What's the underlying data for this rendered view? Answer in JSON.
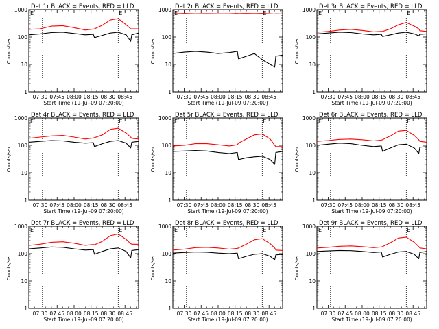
{
  "figure": {
    "background": "#ffffff",
    "events_color": "#000000",
    "lld_color": "#ff0000",
    "x_axis_label": "Start Time (19-Jul-09 07:20:00)",
    "y_axis_label": "Counts/sec",
    "x_tick_labels": [
      "07:30",
      "07:45",
      "08:00",
      "08:15",
      "08:30",
      "08:45"
    ],
    "y_tick_labels": [
      "1",
      "10",
      "100",
      "1000"
    ],
    "marker_left": "E",
    "marker_right": "E"
  },
  "chart_data": [
    {
      "type": "line",
      "title": "Det 1r BLACK = Events, RED = LLD",
      "xlabel": "Start Time (19-Jul-09 07:20:00)",
      "ylabel": "Counts/sec",
      "x_unit": "time",
      "xlim": [
        "07:20",
        "08:57"
      ],
      "ylim": [
        1,
        1000
      ],
      "y_scale": "log",
      "x_ticks": [
        "07:30",
        "07:45",
        "08:00",
        "08:15",
        "08:30",
        "08:45"
      ],
      "event_lines": [
        "07:32",
        "08:39"
      ],
      "x": [
        "07:20",
        "07:30",
        "07:40",
        "07:50",
        "08:00",
        "08:10",
        "08:17",
        "08:18",
        "08:25",
        "08:32",
        "08:39",
        "08:46",
        "08:50",
        "08:51",
        "08:57"
      ],
      "series": [
        {
          "name": "Events",
          "color": "#000000",
          "values": [
            120,
            130,
            145,
            150,
            135,
            120,
            125,
            95,
            115,
            140,
            150,
            120,
            70,
            120,
            140
          ]
        },
        {
          "name": "LLD",
          "color": "#ff0000",
          "values": [
            190,
            200,
            250,
            260,
            220,
            180,
            195,
            200,
            270,
            420,
            470,
            280,
            200,
            200,
            200
          ]
        }
      ]
    },
    {
      "type": "line",
      "title": "Det 2r BLACK = Events, RED = LLD",
      "xlabel": "Start Time (19-Jul-09 07:20:00)",
      "ylabel": "Counts/sec",
      "x_unit": "time",
      "xlim": [
        "07:20",
        "08:57"
      ],
      "ylim": [
        1,
        1000
      ],
      "y_scale": "log",
      "x_ticks": [
        "07:30",
        "07:45",
        "08:00",
        "08:15",
        "08:30",
        "08:45"
      ],
      "event_lines": [
        "07:32",
        "08:39"
      ],
      "x": [
        "07:20",
        "07:30",
        "07:40",
        "07:50",
        "08:00",
        "08:10",
        "08:17",
        "08:18",
        "08:25",
        "08:32",
        "08:39",
        "08:46",
        "08:50",
        "08:51",
        "08:57"
      ],
      "series": [
        {
          "name": "Events",
          "color": "#000000",
          "values": [
            25,
            28,
            30,
            28,
            25,
            27,
            30,
            16,
            20,
            25,
            15,
            10,
            8,
            20,
            22
          ]
        },
        {
          "name": "LLD",
          "color": "#ff0000",
          "values": [
            700,
            720,
            700,
            710,
            700,
            700,
            720,
            710,
            720,
            710,
            720,
            700,
            690,
            700,
            690
          ]
        }
      ]
    },
    {
      "type": "line",
      "title": "Det 3r BLACK = Events, RED = LLD",
      "xlabel": "Start Time (19-Jul-09 07:20:00)",
      "ylabel": "Counts/sec",
      "x_unit": "time",
      "xlim": [
        "07:20",
        "08:57"
      ],
      "ylim": [
        1,
        1000
      ],
      "y_scale": "log",
      "x_ticks": [
        "07:30",
        "07:45",
        "08:00",
        "08:15",
        "08:30",
        "08:45"
      ],
      "event_lines": [
        "07:32",
        "08:39"
      ],
      "x": [
        "07:20",
        "07:30",
        "07:40",
        "07:50",
        "08:00",
        "08:10",
        "08:17",
        "08:18",
        "08:25",
        "08:32",
        "08:39",
        "08:46",
        "08:50",
        "08:51",
        "08:57"
      ],
      "series": [
        {
          "name": "Events",
          "color": "#000000",
          "values": [
            130,
            140,
            150,
            145,
            130,
            120,
            125,
            105,
            120,
            140,
            150,
            130,
            110,
            125,
            130
          ]
        },
        {
          "name": "LLD",
          "color": "#ff0000",
          "values": [
            150,
            160,
            180,
            190,
            175,
            155,
            160,
            160,
            200,
            280,
            340,
            250,
            200,
            170,
            160
          ]
        }
      ]
    },
    {
      "type": "line",
      "title": "Det 4r BLACK = Events, RED = LLD",
      "xlabel": "Start Time (19-Jul-09 07:20:00)",
      "ylabel": "Counts/sec",
      "x_unit": "time",
      "xlim": [
        "07:20",
        "08:57"
      ],
      "ylim": [
        1,
        1000
      ],
      "y_scale": "log",
      "x_ticks": [
        "07:30",
        "07:45",
        "08:00",
        "08:15",
        "08:30",
        "08:45"
      ],
      "event_lines": [
        "07:32",
        "08:39"
      ],
      "x": [
        "07:20",
        "07:30",
        "07:40",
        "07:50",
        "08:00",
        "08:10",
        "08:17",
        "08:18",
        "08:25",
        "08:32",
        "08:39",
        "08:46",
        "08:50",
        "08:51",
        "08:57"
      ],
      "series": [
        {
          "name": "Events",
          "color": "#000000",
          "values": [
            130,
            140,
            150,
            145,
            130,
            120,
            125,
            90,
            115,
            140,
            150,
            120,
            80,
            130,
            140
          ]
        },
        {
          "name": "LLD",
          "color": "#ff0000",
          "values": [
            180,
            200,
            220,
            230,
            200,
            170,
            185,
            190,
            240,
            380,
            420,
            280,
            200,
            180,
            170
          ]
        }
      ]
    },
    {
      "type": "line",
      "title": "Det 5r BLACK = Events, RED = LLD",
      "xlabel": "Start Time (19-Jul-09 07:20:00)",
      "ylabel": "Counts/sec",
      "x_unit": "time",
      "xlim": [
        "07:20",
        "08:57"
      ],
      "ylim": [
        1,
        1000
      ],
      "y_scale": "log",
      "x_ticks": [
        "07:30",
        "07:45",
        "08:00",
        "08:15",
        "08:30",
        "08:45"
      ],
      "event_lines": [
        "07:32",
        "08:39"
      ],
      "x": [
        "07:20",
        "07:30",
        "07:40",
        "07:50",
        "08:00",
        "08:10",
        "08:17",
        "08:18",
        "08:25",
        "08:32",
        "08:39",
        "08:46",
        "08:50",
        "08:51",
        "08:57"
      ],
      "series": [
        {
          "name": "Events",
          "color": "#000000",
          "values": [
            60,
            62,
            65,
            62,
            55,
            50,
            55,
            30,
            35,
            38,
            40,
            30,
            20,
            55,
            60
          ]
        },
        {
          "name": "LLD",
          "color": "#ff0000",
          "values": [
            95,
            100,
            115,
            115,
            105,
            95,
            105,
            120,
            170,
            240,
            260,
            170,
            100,
            90,
            90
          ]
        }
      ]
    },
    {
      "type": "line",
      "title": "Det 6r BLACK = Events, RED = LLD",
      "xlabel": "Start Time (19-Jul-09 07:20:00)",
      "ylabel": "Counts/sec",
      "x_unit": "time",
      "xlim": [
        "07:20",
        "08:57"
      ],
      "ylim": [
        1,
        1000
      ],
      "y_scale": "log",
      "x_ticks": [
        "07:30",
        "07:45",
        "08:00",
        "08:15",
        "08:30",
        "08:45"
      ],
      "event_lines": [
        "07:32",
        "08:39"
      ],
      "x": [
        "07:20",
        "07:30",
        "07:40",
        "07:50",
        "08:00",
        "08:10",
        "08:17",
        "08:18",
        "08:25",
        "08:32",
        "08:39",
        "08:46",
        "08:50",
        "08:51",
        "08:57"
      ],
      "series": [
        {
          "name": "Events",
          "color": "#000000",
          "values": [
            100,
            110,
            120,
            115,
            100,
            90,
            95,
            60,
            80,
            105,
            110,
            80,
            50,
            85,
            90
          ]
        },
        {
          "name": "LLD",
          "color": "#ff0000",
          "values": [
            140,
            150,
            165,
            170,
            160,
            145,
            155,
            160,
            220,
            330,
            350,
            230,
            160,
            140,
            130
          ]
        }
      ]
    },
    {
      "type": "line",
      "title": "Det 7r BLACK = Events, RED = LLD",
      "xlabel": "Start Time (19-Jul-09 07:20:00)",
      "ylabel": "Counts/sec",
      "x_unit": "time",
      "xlim": [
        "07:20",
        "08:57"
      ],
      "ylim": [
        1,
        1000
      ],
      "y_scale": "log",
      "x_ticks": [
        "07:30",
        "07:45",
        "08:00",
        "08:15",
        "08:30",
        "08:45"
      ],
      "event_lines": [
        "07:32",
        "08:39"
      ],
      "x": [
        "07:20",
        "07:30",
        "07:40",
        "07:50",
        "08:00",
        "08:10",
        "08:17",
        "08:18",
        "08:25",
        "08:32",
        "08:39",
        "08:46",
        "08:50",
        "08:51",
        "08:57"
      ],
      "series": [
        {
          "name": "Events",
          "color": "#000000",
          "values": [
            150,
            160,
            175,
            170,
            150,
            135,
            140,
            95,
            120,
            150,
            160,
            120,
            70,
            130,
            140
          ]
        },
        {
          "name": "LLD",
          "color": "#ff0000",
          "values": [
            200,
            220,
            260,
            270,
            240,
            200,
            215,
            210,
            280,
            450,
            520,
            330,
            230,
            220,
            220
          ]
        }
      ]
    },
    {
      "type": "line",
      "title": "Det 8r BLACK = Events, RED = LLD",
      "xlabel": "Start Time (19-Jul-09 07:20:00)",
      "ylabel": "Counts/sec",
      "x_unit": "time",
      "xlim": [
        "07:20",
        "08:57"
      ],
      "ylim": [
        1,
        1000
      ],
      "y_scale": "log",
      "x_ticks": [
        "07:30",
        "07:45",
        "08:00",
        "08:15",
        "08:30",
        "08:45"
      ],
      "event_lines": [
        "07:32",
        "08:39"
      ],
      "x": [
        "07:20",
        "07:30",
        "07:40",
        "07:50",
        "08:00",
        "08:10",
        "08:17",
        "08:18",
        "08:25",
        "08:32",
        "08:39",
        "08:46",
        "08:50",
        "08:51",
        "08:57"
      ],
      "series": [
        {
          "name": "Events",
          "color": "#000000",
          "values": [
            105,
            110,
            115,
            112,
            105,
            100,
            105,
            65,
            80,
            95,
            100,
            80,
            60,
            90,
            95
          ]
        },
        {
          "name": "LLD",
          "color": "#ff0000",
          "values": [
            135,
            145,
            165,
            170,
            160,
            145,
            155,
            160,
            220,
            320,
            350,
            230,
            160,
            135,
            130
          ]
        }
      ]
    },
    {
      "type": "line",
      "title": "Det 9r BLACK = Events, RED = LLD",
      "xlabel": "Start Time (19-Jul-09 07:20:00)",
      "ylabel": "Counts/sec",
      "x_unit": "time",
      "xlim": [
        "07:20",
        "08:57"
      ],
      "ylim": [
        1,
        1000
      ],
      "y_scale": "log",
      "x_ticks": [
        "07:30",
        "07:45",
        "08:00",
        "08:15",
        "08:30",
        "08:45"
      ],
      "event_lines": [
        "07:32",
        "08:39"
      ],
      "x": [
        "07:20",
        "07:30",
        "07:40",
        "07:50",
        "08:00",
        "08:10",
        "08:17",
        "08:18",
        "08:25",
        "08:32",
        "08:39",
        "08:46",
        "08:50",
        "08:51",
        "08:57"
      ],
      "series": [
        {
          "name": "Events",
          "color": "#000000",
          "values": [
            120,
            125,
            130,
            128,
            120,
            110,
            115,
            75,
            95,
            115,
            120,
            95,
            65,
            110,
            120
          ]
        },
        {
          "name": "LLD",
          "color": "#ff0000",
          "values": [
            160,
            170,
            185,
            190,
            180,
            165,
            175,
            180,
            250,
            370,
            400,
            260,
            180,
            160,
            150
          ]
        }
      ]
    }
  ]
}
